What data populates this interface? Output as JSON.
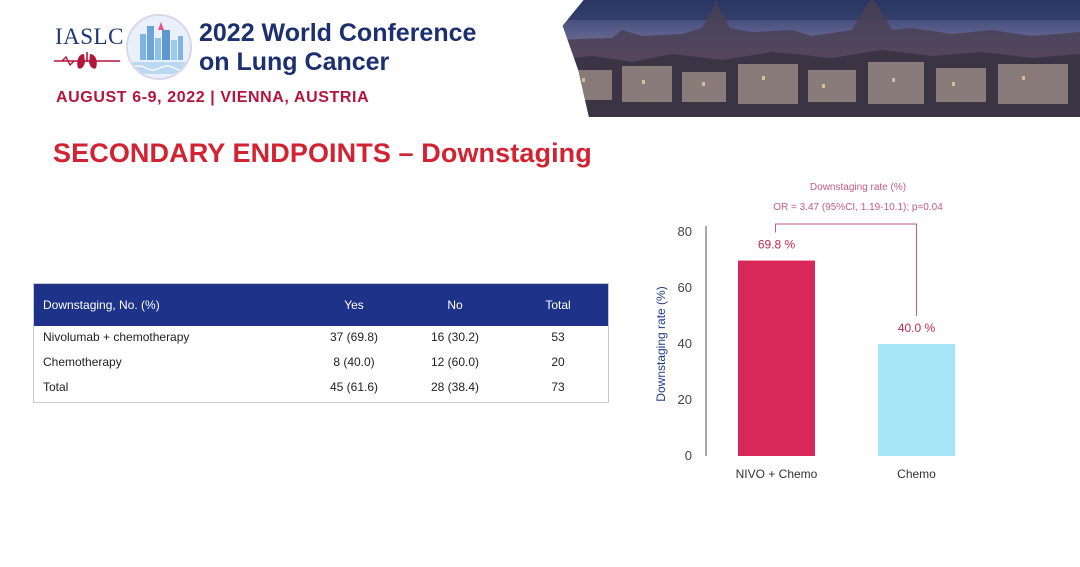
{
  "header": {
    "org": "IASLC",
    "conference_title_line1": "2022 World Conference",
    "conference_title_line2": "on Lung Cancer",
    "dates_location": "AUGUST 6-9, 2022 | VIENNA, AUSTRIA"
  },
  "slide": {
    "title": "SECONDARY ENDPOINTS – Downstaging"
  },
  "table": {
    "columns": [
      "Downstaging, No. (%)",
      "Yes",
      "No",
      "Total"
    ],
    "rows": [
      [
        "Nivolumab + chemotherapy",
        "37 (69.8)",
        "16 (30.2)",
        "53"
      ],
      [
        "Chemotherapy",
        "8 (40.0)",
        "12 (60.0)",
        "20"
      ],
      [
        "Total",
        "45 (61.6)",
        "28 (38.4)",
        "73"
      ]
    ]
  },
  "chart_data": {
    "type": "bar",
    "title": "Downstaging rate (%)",
    "subtitle": "OR = 3.47 (95%CI, 1.19-10.1); p=0.04",
    "categories": [
      "NIVO + Chemo",
      "Chemo"
    ],
    "values": [
      69.8,
      40.0
    ],
    "data_labels": [
      "69.8 %",
      "40.0 %"
    ],
    "ylabel": "Downstaging rate (%)",
    "xlabel": "",
    "ylim": [
      0,
      80
    ],
    "yticks": [
      0,
      20,
      40,
      60,
      80
    ],
    "grid": false,
    "colors": [
      "#d8285a",
      "#a6e6f8"
    ],
    "annotation_color": "#c45c7e"
  }
}
